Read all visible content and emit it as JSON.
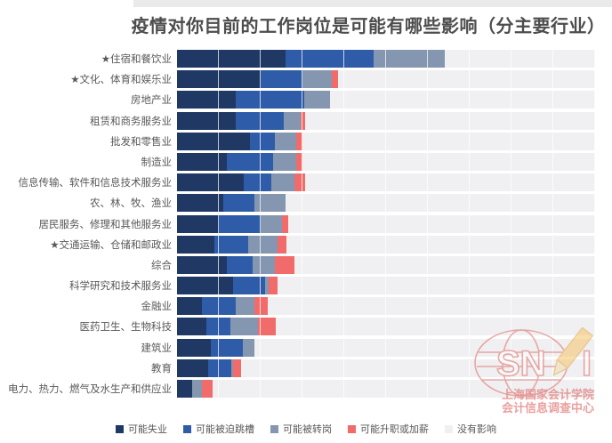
{
  "page": {
    "background": "#ffffff",
    "top_strip_color": "#eaeaea"
  },
  "chart_data": {
    "type": "bar",
    "orientation": "horizontal",
    "stacked": true,
    "percent_total": 100,
    "unit": "%",
    "title": "疫情对你目前的工作岗位是可能有哪些影响（分主要行业）",
    "xlabel": "",
    "ylabel": "",
    "xlim": [
      0,
      100
    ],
    "gridline_step": 10,
    "grid": true,
    "legend_position": "bottom",
    "categories": [
      "★住宿和餐饮业",
      "★文化、体育和娱乐业",
      "房地产业",
      "租赁和商务服务业",
      "批发和零售业",
      "制造业",
      "信息传输、软件和信息技术服务业",
      "农、林、牧、渔业",
      "居民服务、修理和其他服务业",
      "★交通运输、仓储和邮政业",
      "综合",
      "科学研究和技术服务业",
      "金融业",
      "医药卫生、生物科技",
      "建筑业",
      "教育",
      "电力、热力、燃气及水生产和供应业"
    ],
    "series": [
      {
        "name": "可能失业",
        "key": "unemployment",
        "color": "#1F3864",
        "values": [
          26,
          20,
          14,
          14,
          17.5,
          12,
          16,
          11,
          10,
          9,
          12,
          13.5,
          6,
          7,
          8,
          7.5,
          3.6
        ]
      },
      {
        "name": "可能被迫跳槽",
        "key": "forced-job-change",
        "color": "#2F5CA8",
        "values": [
          21,
          10,
          16.5,
          11.5,
          6,
          11,
          6.5,
          7.5,
          10,
          8,
          6,
          7.5,
          8,
          5.7,
          7.7,
          5.5,
          0
        ]
      },
      {
        "name": "可能被转岗",
        "key": "transfer",
        "color": "#8496B0",
        "values": [
          17,
          7,
          6,
          4,
          5,
          5.5,
          5.5,
          7.5,
          5,
          7,
          5.5,
          1,
          4.5,
          6.7,
          2.8,
          0.5,
          2.4
        ]
      },
      {
        "name": "可能升职或加薪",
        "key": "promotion-raise",
        "color": "#F26B6B",
        "values": [
          0,
          1.5,
          0,
          1.2,
          1.6,
          1.6,
          2.6,
          0,
          1.6,
          2.2,
          4.5,
          2,
          3.2,
          4.3,
          0,
          1.8,
          2.5
        ]
      },
      {
        "name": "没有影响",
        "key": "no-impact",
        "color": "#F0F0F2",
        "values": [
          36,
          61.5,
          63.5,
          69.3,
          69.9,
          69.9,
          69.4,
          74,
          73.4,
          73.8,
          72,
          76,
          78.3,
          76.3,
          81.5,
          84.7,
          91.5
        ]
      }
    ]
  },
  "watermark": {
    "logo_sn": "SN",
    "logo_i": "I",
    "line1": "上海国家会计学院",
    "line2": "会计信息调查中心",
    "color": "#d9534f"
  }
}
